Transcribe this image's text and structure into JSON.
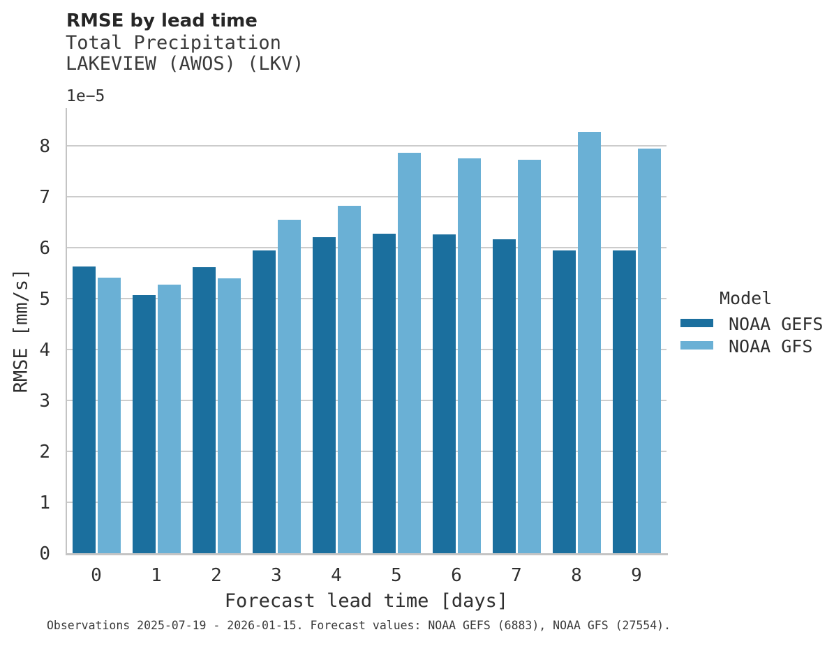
{
  "chart_data": {
    "type": "bar",
    "title": "RMSE by lead time",
    "subtitle": "Total Precipitation",
    "station": "LAKEVIEW (AWOS) (LKV)",
    "scale_label": "1e−5",
    "xlabel": "Forecast lead time [days]",
    "ylabel": "RMSE [mm/s]",
    "categories": [
      "0",
      "1",
      "2",
      "3",
      "4",
      "5",
      "6",
      "7",
      "8",
      "9"
    ],
    "yticks": [
      0,
      1,
      2,
      3,
      4,
      5,
      6,
      7,
      8
    ],
    "ylim": [
      0,
      8.74
    ],
    "grid": true,
    "legend_title": "Model",
    "legend_position": "right",
    "series": [
      {
        "name": "NOAA GEFS",
        "color": "#1b6f9e",
        "values": [
          5.63,
          5.07,
          5.61,
          5.95,
          6.2,
          6.28,
          6.26,
          6.16,
          5.94,
          5.94
        ]
      },
      {
        "name": "NOAA GFS",
        "color": "#6ab0d5",
        "values": [
          5.41,
          5.27,
          5.4,
          6.55,
          6.82,
          7.87,
          7.75,
          7.72,
          8.28,
          7.94
        ]
      }
    ],
    "caption": "Observations 2025-07-19 - 2026-01-15. Forecast values: NOAA GEFS (6883), NOAA GFS (27554)."
  },
  "colors": {
    "grid": "#cccccc",
    "spine": "#c4c4c4",
    "background": "#ffffff"
  }
}
